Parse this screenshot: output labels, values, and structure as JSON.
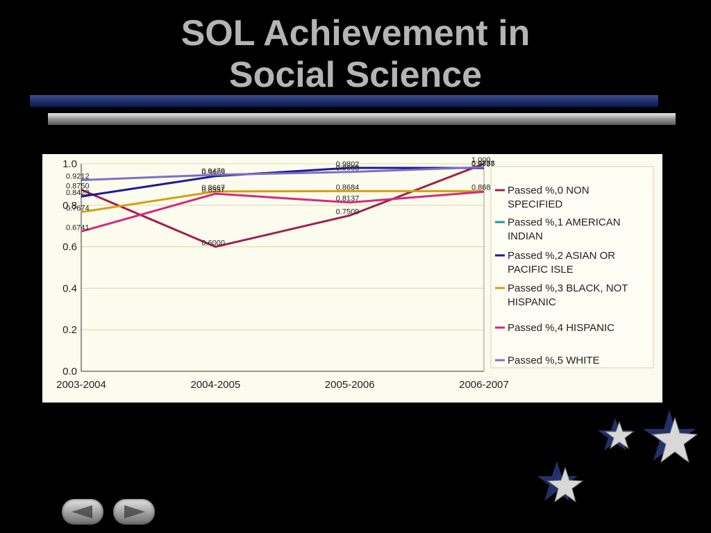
{
  "slide": {
    "title_line1": "SOL Achievement in",
    "title_line2": "Social Science"
  },
  "colors": {
    "title": "#b4b4b4",
    "background": "#000000",
    "chart_background": "#fbfbee",
    "accent_bar": "#1a2b66"
  },
  "navigation": {
    "prev_icon": "back-arrow-icon",
    "next_icon": "forward-arrow-icon"
  },
  "chart_data": {
    "type": "line",
    "categories": [
      "2003-2004",
      "2004-2005",
      "2005-2006",
      "2006-2007"
    ],
    "ylim": [
      0.0,
      1.0
    ],
    "yticks": [
      "0.0",
      "0.2",
      "0.4",
      "0.6",
      "0.8",
      "1.0"
    ],
    "grid": true,
    "legend_position": "right",
    "series": [
      {
        "name": "Passed %,0 NON SPECIFIED",
        "color": "#a0204f",
        "values": [
          0.875,
          0.6,
          0.7509,
          1.0
        ],
        "labels": [
          "0.8750",
          "0.6000",
          "0.7509",
          "1.000"
        ]
      },
      {
        "name": "Passed %,1 AMERICAN INDIAN",
        "color": "#1a9a9a",
        "values": [
          null,
          null,
          null,
          null
        ],
        "labels": []
      },
      {
        "name": "Passed %,2 ASIAN OR PACIFIC ISLE",
        "color": "#1a1a9a",
        "values": [
          0.8423,
          0.9405,
          0.9802,
          0.9797
        ],
        "labels": [
          "0.8423",
          "0.9405",
          "0.9802",
          "0.9797"
        ]
      },
      {
        "name": "Passed %,3 BLACK, NOT HISPANIC",
        "color": "#d4a010",
        "values": [
          0.7674,
          0.8667,
          0.8684,
          0.868
        ],
        "labels": [
          "0.7674",
          "0.8667",
          "0.8684",
          "0.868"
        ]
      },
      {
        "name": "Passed %,4 HISPANIC",
        "color": "#d42a7a",
        "values": [
          0.6741,
          0.8557,
          0.8137,
          0.8653
        ],
        "labels": [
          "0.6741",
          "0.8557",
          "0.8137",
          ""
        ]
      },
      {
        "name": "Passed %,5 WHITE",
        "color": "#7a70c0",
        "values": [
          0.9212,
          0.947,
          0.9608,
          0.9838
        ],
        "labels": [
          "0.9212",
          "0.9470",
          "0.9608",
          "0.9838"
        ]
      }
    ]
  }
}
